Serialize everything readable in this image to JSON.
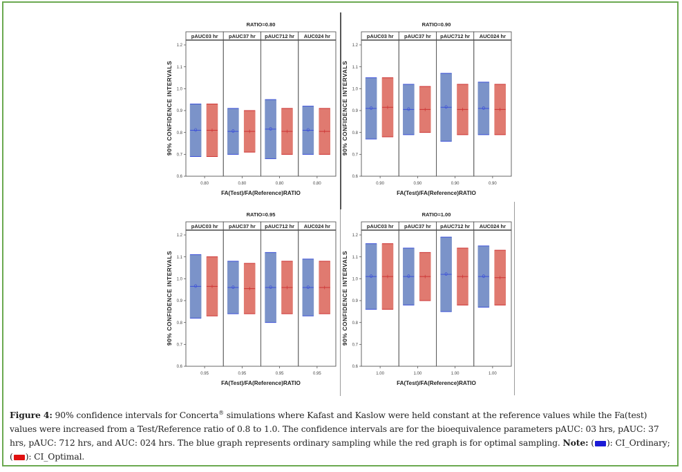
{
  "chart_data": [
    {
      "type": "bar",
      "subtype": "floating-interval",
      "title": "RATIO=0.80",
      "xlabel": "FA(Test)/FA(Reference)RATIO",
      "ylabel": "90% CONFIDENCE INTERVALS",
      "ylim": [
        0.6,
        1.2
      ],
      "yticks": [
        "0.6",
        "0.7",
        "0.8",
        "0.9",
        "1.0",
        "1.1",
        "1.2"
      ],
      "categories": [
        "pAUC03 hr",
        "pAUC37 hr",
        "pAUC712 hr",
        "AUC024 hr"
      ],
      "x_tick_label": "0.80",
      "series": [
        {
          "name": "CI_Ordinary",
          "lower": [
            0.69,
            0.7,
            0.68,
            0.7
          ],
          "upper": [
            0.93,
            0.91,
            0.95,
            0.92
          ],
          "mean": [
            0.81,
            0.805,
            0.815,
            0.81
          ]
        },
        {
          "name": "CI_Optimal",
          "lower": [
            0.69,
            0.71,
            0.7,
            0.7
          ],
          "upper": [
            0.93,
            0.9,
            0.91,
            0.91
          ],
          "mean": [
            0.81,
            0.805,
            0.805,
            0.805
          ]
        }
      ]
    },
    {
      "type": "bar",
      "subtype": "floating-interval",
      "title": "RATIO=0.90",
      "xlabel": "FA(Test)/FA(Reference)RATIO",
      "ylabel": "90% CONFIDENCE INTERVALS",
      "ylim": [
        0.6,
        1.2
      ],
      "yticks": [
        "0.6",
        "0.7",
        "0.8",
        "0.9",
        "1.0",
        "1.1",
        "1.2"
      ],
      "categories": [
        "pAUC03 hr",
        "pAUC37 hr",
        "pAUC712 hr",
        "AUC024 hr"
      ],
      "x_tick_label": "0.90",
      "series": [
        {
          "name": "CI_Ordinary",
          "lower": [
            0.77,
            0.79,
            0.76,
            0.79
          ],
          "upper": [
            1.05,
            1.02,
            1.07,
            1.03
          ],
          "mean": [
            0.91,
            0.905,
            0.915,
            0.91
          ]
        },
        {
          "name": "CI_Optimal",
          "lower": [
            0.78,
            0.8,
            0.79,
            0.79
          ],
          "upper": [
            1.05,
            1.01,
            1.02,
            1.02
          ],
          "mean": [
            0.915,
            0.905,
            0.905,
            0.905
          ]
        }
      ]
    },
    {
      "type": "bar",
      "subtype": "floating-interval",
      "title": "RATIO=0.95",
      "xlabel": "FA(Test)/FA(Reference)RATIO",
      "ylabel": "90% CONFIDENCE INTERVALS",
      "ylim": [
        0.6,
        1.2
      ],
      "yticks": [
        "0.6",
        "0.7",
        "0.8",
        "0.9",
        "1.0",
        "1.1",
        "1.2"
      ],
      "categories": [
        "pAUC03 hr",
        "pAUC37 hr",
        "pAUC712 hr",
        "AUC024 hr"
      ],
      "x_tick_label": "0.95",
      "series": [
        {
          "name": "CI_Ordinary",
          "lower": [
            0.82,
            0.84,
            0.8,
            0.83
          ],
          "upper": [
            1.11,
            1.08,
            1.12,
            1.09
          ],
          "mean": [
            0.965,
            0.96,
            0.96,
            0.96
          ]
        },
        {
          "name": "CI_Optimal",
          "lower": [
            0.83,
            0.84,
            0.84,
            0.84
          ],
          "upper": [
            1.1,
            1.07,
            1.08,
            1.08
          ],
          "mean": [
            0.965,
            0.955,
            0.96,
            0.96
          ]
        }
      ]
    },
    {
      "type": "bar",
      "subtype": "floating-interval",
      "title": "RATIO=1.00",
      "xlabel": "FA(Test)/FA(Reference)RATIO",
      "ylabel": "90% CONFIDENCE INTERVALS",
      "ylim": [
        0.6,
        1.2
      ],
      "yticks": [
        "0.6",
        "0.7",
        "0.8",
        "0.9",
        "1.0",
        "1.1",
        "1.2"
      ],
      "categories": [
        "pAUC03 hr",
        "pAUC37 hr",
        "pAUC712 hr",
        "AUC024 hr"
      ],
      "x_tick_label": "1.00",
      "series": [
        {
          "name": "CI_Ordinary",
          "lower": [
            0.86,
            0.88,
            0.85,
            0.87
          ],
          "upper": [
            1.16,
            1.14,
            1.19,
            1.15
          ],
          "mean": [
            1.01,
            1.01,
            1.02,
            1.01
          ]
        },
        {
          "name": "CI_Optimal",
          "lower": [
            0.86,
            0.9,
            0.88,
            0.88
          ],
          "upper": [
            1.16,
            1.12,
            1.14,
            1.13
          ],
          "mean": [
            1.01,
            1.01,
            1.01,
            1.005
          ]
        }
      ]
    }
  ],
  "colors": {
    "ordinary_fill": "#7b93c9",
    "ordinary_edge": "#3b4fd8",
    "optimal_fill": "#e07a70",
    "optimal_edge": "#cc3333",
    "frame_border": "#6aa84f",
    "legend_blue": "#1a1ad6",
    "legend_red": "#e01010"
  },
  "caption": {
    "label": "Figure 4:",
    "text_1": " 90% confidence intervals for Concerta",
    "reg": "®",
    "text_2": " simulations where Kafast and Kaslow were held constant at the reference values while the Fa(test) values were increased from a Test/Reference ratio of 0.8 to 1.0. The confidence intervals are for the bioequivalence parameters pAUC: 03 hrs, pAUC: 37 hrs, pAUC: 712 hrs, and AUC: 024 hrs. The blue graph represents ordinary sampling while the red graph is for optimal sampling. ",
    "note_label": "Note:",
    "legend_open_1": " (",
    "legend_close_1": "): CI_Ordinary; (",
    "legend_close_2": "): CI_Optimal."
  }
}
